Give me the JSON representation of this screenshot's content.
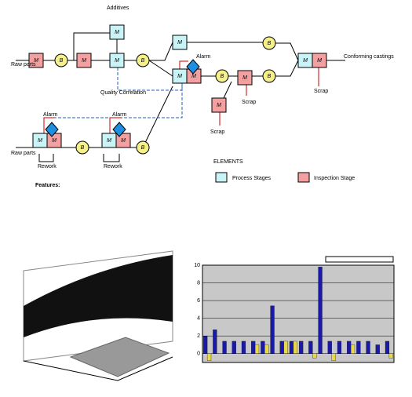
{
  "diagram": {
    "texts": [
      "Additives",
      "Raw parts",
      "Raw parts",
      "Alarm",
      "Alarm",
      "Alarm",
      "Quality Correlation",
      "Conforming castings",
      "Scrap",
      "Scrap",
      "Scrap",
      "Rework",
      "Rework",
      "ELEMENTS",
      "Process Stages",
      "Inspection Stage",
      "Features:"
    ],
    "machine_label": "M",
    "buffer_label": "B"
  },
  "chart_data": {
    "type": "bar",
    "categories": [
      null,
      null,
      null,
      null,
      null,
      null,
      null,
      null,
      null,
      null,
      null,
      null,
      null,
      null,
      null,
      null,
      null,
      null,
      null,
      null
    ],
    "series": [
      {
        "color": "#1a1aa8",
        "values": [
          2.0,
          2.7,
          1.4,
          1.4,
          1.4,
          1.4,
          1.4,
          5.4,
          1.4,
          1.4,
          1.4,
          1.4,
          9.8,
          1.4,
          1.4,
          1.4,
          1.4,
          1.4,
          1.0,
          1.4
        ]
      },
      {
        "color": "#e8d84a",
        "values": [
          -0.8,
          0,
          0,
          0,
          0,
          1.0,
          1.0,
          0,
          1.4,
          1.4,
          0,
          -0.5,
          0,
          -0.8,
          0,
          1.0,
          0,
          0,
          0,
          -0.5
        ]
      }
    ],
    "ylim": [
      -1,
      10
    ],
    "yticks": [
      0,
      2,
      4,
      6,
      8,
      10
    ],
    "grid": true
  }
}
